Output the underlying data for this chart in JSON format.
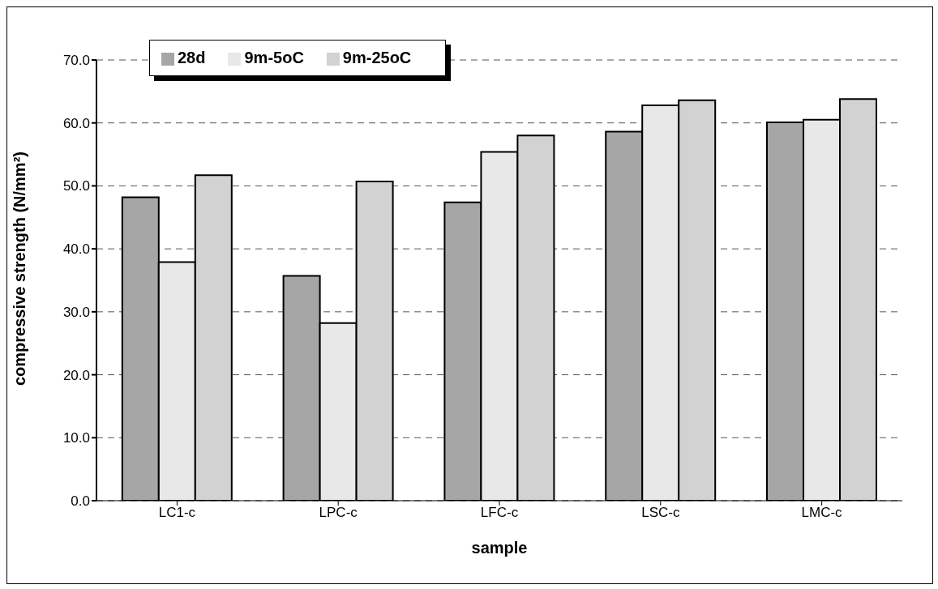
{
  "chart_data": {
    "type": "bar",
    "xlabel": "sample",
    "ylabel": "compressive strength (N/mm²)",
    "categories": [
      "LC1-c",
      "LPC-c",
      "LFC-c",
      "LSC-c",
      "LMC-c"
    ],
    "series": [
      {
        "name": "28d",
        "color": "#a6a6a6",
        "values": [
          48.2,
          35.7,
          47.4,
          58.6,
          60.1
        ]
      },
      {
        "name": "9m-5oC",
        "color": "#e8e8e8",
        "values": [
          37.9,
          28.2,
          55.4,
          62.8,
          60.5
        ]
      },
      {
        "name": "9m-25oC",
        "color": "#d2d2d2",
        "values": [
          51.7,
          50.7,
          58.0,
          63.6,
          63.8
        ]
      }
    ],
    "ylim": [
      0,
      70
    ],
    "yticks": [
      {
        "value": 0,
        "label": "0.0"
      },
      {
        "value": 10,
        "label": "10.0"
      },
      {
        "value": 20,
        "label": "20.0"
      },
      {
        "value": 30,
        "label": "30.0"
      },
      {
        "value": 40,
        "label": "40.0"
      },
      {
        "value": 50,
        "label": "50.0"
      },
      {
        "value": 60,
        "label": "60.0"
      },
      {
        "value": 70,
        "label": "70.0"
      }
    ],
    "grid": "y",
    "legend": "top left"
  }
}
